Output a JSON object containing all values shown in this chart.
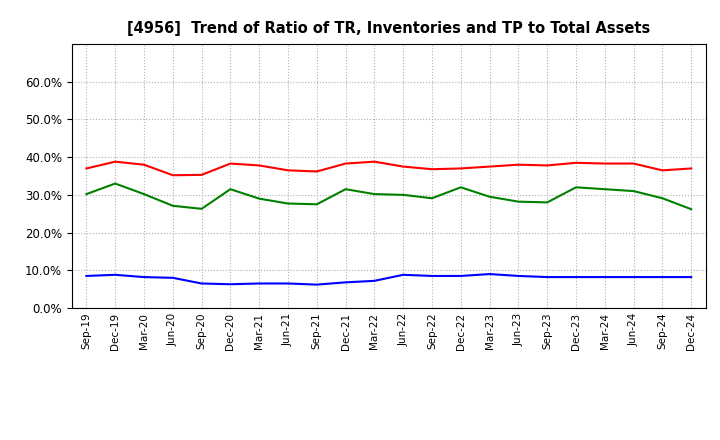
{
  "title": "[4956]  Trend of Ratio of TR, Inventories and TP to Total Assets",
  "x_labels": [
    "Sep-19",
    "Dec-19",
    "Mar-20",
    "Jun-20",
    "Sep-20",
    "Dec-20",
    "Mar-21",
    "Jun-21",
    "Sep-21",
    "Dec-21",
    "Mar-22",
    "Jun-22",
    "Sep-22",
    "Dec-22",
    "Mar-23",
    "Jun-23",
    "Sep-23",
    "Dec-23",
    "Mar-24",
    "Jun-24",
    "Sep-24",
    "Dec-24"
  ],
  "trade_receivables": [
    0.37,
    0.388,
    0.38,
    0.352,
    0.353,
    0.383,
    0.378,
    0.365,
    0.362,
    0.383,
    0.388,
    0.375,
    0.368,
    0.37,
    0.375,
    0.38,
    0.378,
    0.385,
    0.383,
    0.383,
    0.365,
    0.37
  ],
  "inventories": [
    0.085,
    0.088,
    0.082,
    0.08,
    0.065,
    0.063,
    0.065,
    0.065,
    0.062,
    0.068,
    0.072,
    0.088,
    0.085,
    0.085,
    0.09,
    0.085,
    0.082,
    0.082,
    0.082,
    0.082,
    0.082,
    0.082
  ],
  "trade_payables": [
    0.302,
    0.33,
    0.302,
    0.271,
    0.263,
    0.315,
    0.29,
    0.277,
    0.275,
    0.315,
    0.302,
    0.3,
    0.291,
    0.32,
    0.295,
    0.282,
    0.28,
    0.32,
    0.315,
    0.31,
    0.291,
    0.262
  ],
  "tr_color": "#ff0000",
  "inv_color": "#0000ff",
  "tp_color": "#008000",
  "ylim": [
    0.0,
    0.7
  ],
  "yticks": [
    0.0,
    0.1,
    0.2,
    0.3,
    0.4,
    0.5,
    0.6
  ],
  "bg_color": "#ffffff",
  "grid_color": "#b0b0b0"
}
